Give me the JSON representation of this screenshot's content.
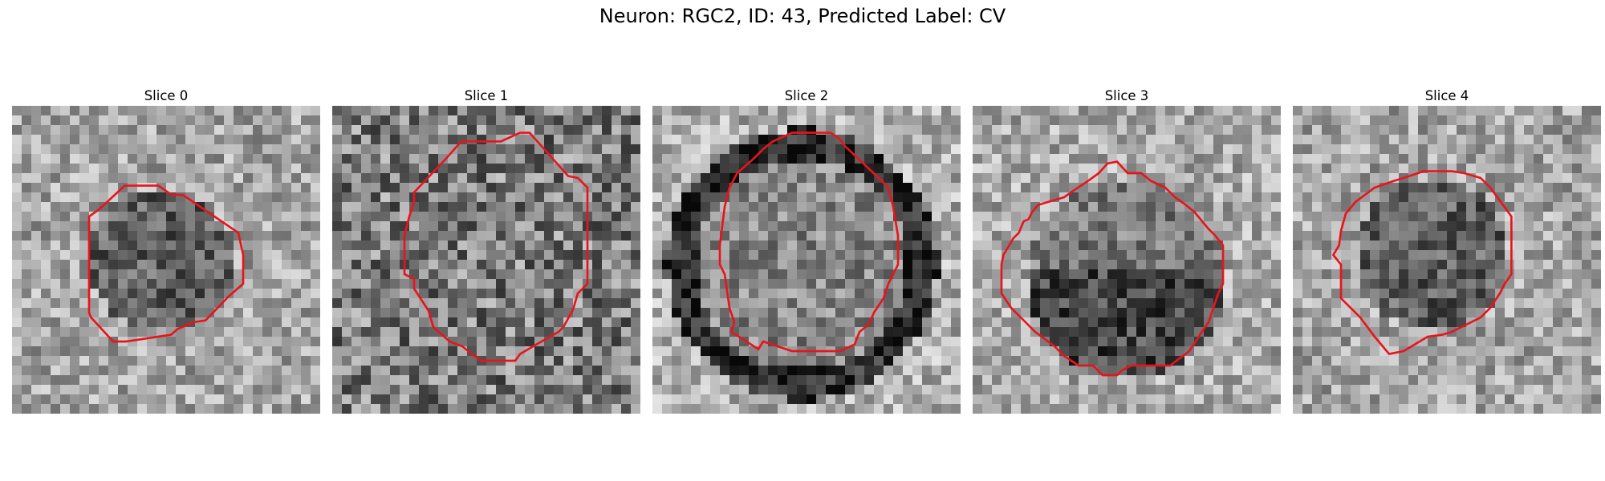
{
  "figure": {
    "title": "Neuron: RGC2, ID: 43, Predicted Label: CV"
  },
  "slices": [
    {
      "title": "Slice 0"
    },
    {
      "title": "Slice 1"
    },
    {
      "title": "Slice 2"
    },
    {
      "title": "Slice 3"
    },
    {
      "title": "Slice 4"
    }
  ],
  "overlay": {
    "contour_color": "#e8141c",
    "colormap": "gray"
  }
}
